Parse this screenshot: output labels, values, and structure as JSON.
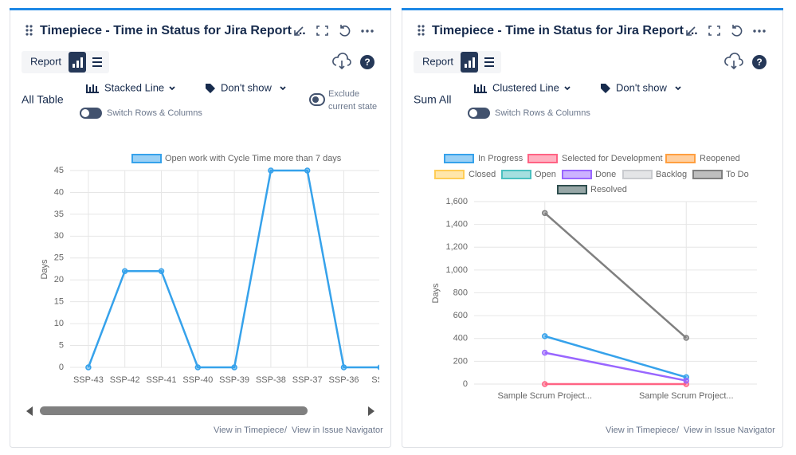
{
  "panels": [
    {
      "title": "Timepiece - Time in Status for Jira Report ...",
      "report": "Report",
      "chart_type": "Stacked Line",
      "labels": "Don't show",
      "switch": "Switch Rows & Columns",
      "mode": "All Table",
      "exclude": [
        "Exclude",
        "current state"
      ],
      "links": [
        "View in Timepiece",
        "/",
        "View in Issue Navigator"
      ]
    },
    {
      "title": "Timepiece - Time in Status for Jira Report ...",
      "report": "Report",
      "chart_type": "Clustered Line",
      "labels": "Don't show",
      "switch": "Switch Rows & Columns",
      "mode": "Sum All",
      "links": [
        "View in Timepiece",
        "/",
        "View in Issue Navigator"
      ]
    }
  ],
  "chart_data": [
    {
      "type": "line",
      "ylabel": "Days",
      "categories": [
        "SSP-43",
        "SSP-42",
        "SSP-41",
        "SSP-40",
        "SSP-39",
        "SSP-38",
        "SSP-37",
        "SSP-36",
        "SSP"
      ],
      "series": [
        {
          "name": "Open work with Cycle Time more than 7 days",
          "color": "#36a2eb",
          "values": [
            0,
            22,
            22,
            0,
            0,
            45,
            45,
            0,
            0
          ]
        }
      ],
      "ylim": [
        0,
        45
      ],
      "yticks": [
        0,
        5,
        10,
        15,
        20,
        25,
        30,
        35,
        40,
        45
      ],
      "grid": true
    },
    {
      "type": "line",
      "ylabel": "Days",
      "categories": [
        "Sample Scrum Project...",
        "Sample Scrum Project..."
      ],
      "series": [
        {
          "name": "In Progress",
          "color": "#36a2eb",
          "values": [
            420,
            60
          ]
        },
        {
          "name": "Selected for Development",
          "color": "#ff6384",
          "values": [
            0,
            0
          ]
        },
        {
          "name": "Reopened",
          "color": "#ff9f40",
          "values": [
            null,
            null
          ]
        },
        {
          "name": "Closed",
          "color": "#ffcd56",
          "values": [
            null,
            null
          ]
        },
        {
          "name": "Open",
          "color": "#4bc0c0",
          "values": [
            null,
            null
          ]
        },
        {
          "name": "Done",
          "color": "#9966ff",
          "values": [
            275,
            30
          ]
        },
        {
          "name": "Backlog",
          "color": "#c9cbcf",
          "values": [
            null,
            null
          ]
        },
        {
          "name": "To Do",
          "color": "#808080",
          "values": [
            1500,
            405
          ]
        },
        {
          "name": "Resolved",
          "color": "#2f4f4f",
          "values": [
            null,
            null
          ]
        }
      ],
      "ylim": [
        0,
        1600
      ],
      "yticks": [
        0,
        200,
        400,
        600,
        800,
        {
          "value": 1000,
          "label": "1,000"
        },
        {
          "value": 1200,
          "label": "1,200"
        },
        {
          "value": 1400,
          "label": "1,400"
        },
        {
          "value": 1600,
          "label": "1,600"
        }
      ],
      "grid": true
    }
  ]
}
